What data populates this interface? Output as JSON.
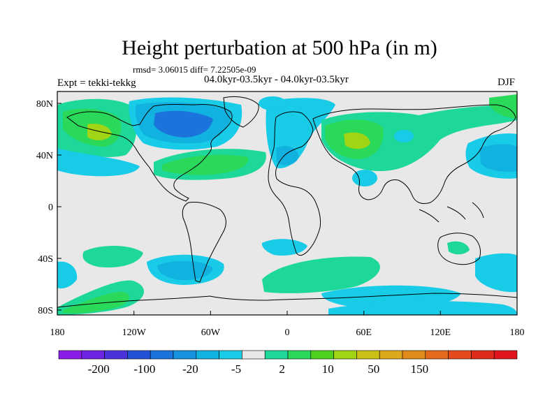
{
  "title": "Height perturbation at 500 hPa (in m)",
  "stats": "rmsd= 3.06015 diff= 7.22505e-09",
  "experiment": "Expt = tekki-tekkg",
  "period": "04.0kyr-03.5kyr - 04.0kyr-03.5kyr",
  "season": "DJF",
  "lat_labels": [
    "80N",
    "40N",
    "0",
    "40S",
    "80S"
  ],
  "lon_labels": [
    "180",
    "120W",
    "60W",
    "0",
    "60E",
    "120E",
    "180"
  ],
  "colorbar": {
    "colors": [
      "#8a1ee8",
      "#6e24e0",
      "#4a33d8",
      "#2452d6",
      "#1a74dc",
      "#1792de",
      "#12b2e0",
      "#18cbe6",
      "#e8e8e8",
      "#1ed89a",
      "#2ad85a",
      "#4fd01e",
      "#a0d414",
      "#ccc018",
      "#dca81c",
      "#e08a1c",
      "#e46a1c",
      "#e44a1c",
      "#e02a1c",
      "#e0141c"
    ],
    "labels": [
      "-200",
      "-100",
      "-20",
      "-5",
      "2",
      "10",
      "50",
      "150"
    ]
  }
}
